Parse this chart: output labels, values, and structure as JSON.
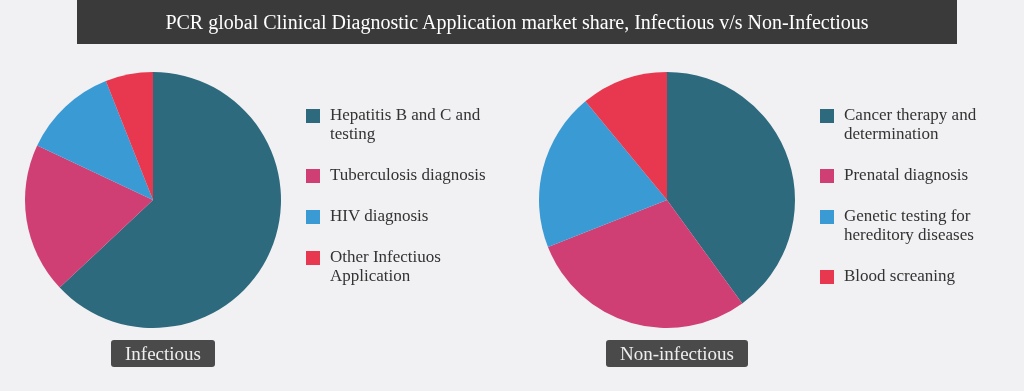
{
  "chart_data": [
    {
      "type": "pie",
      "title": "PCR global Clinical Diagnostic Application market share, Infectious v/s Non-Infectious",
      "subtitle": "Infectious",
      "categories": [
        "Hepatitis B and C and testing",
        "Tuberculosis diagnosis",
        "HIV diagnosis",
        "Other Infectiuos Application"
      ],
      "values": [
        63,
        19,
        12,
        6
      ],
      "colors": [
        "#2e6a7d",
        "#cf3f74",
        "#3a9ad4",
        "#e8384f"
      ],
      "legend": "right"
    },
    {
      "type": "pie",
      "subtitle": "Non-infectious",
      "categories": [
        "Cancer therapy and determination",
        "Prenatal diagnosis",
        "Genetic testing for hereditory diseases",
        "Blood screaning"
      ],
      "values": [
        40,
        29,
        20,
        11
      ],
      "colors": [
        "#2e6a7d",
        "#cf3f74",
        "#3a9ad4",
        "#e8384f"
      ],
      "legend": "right"
    }
  ]
}
